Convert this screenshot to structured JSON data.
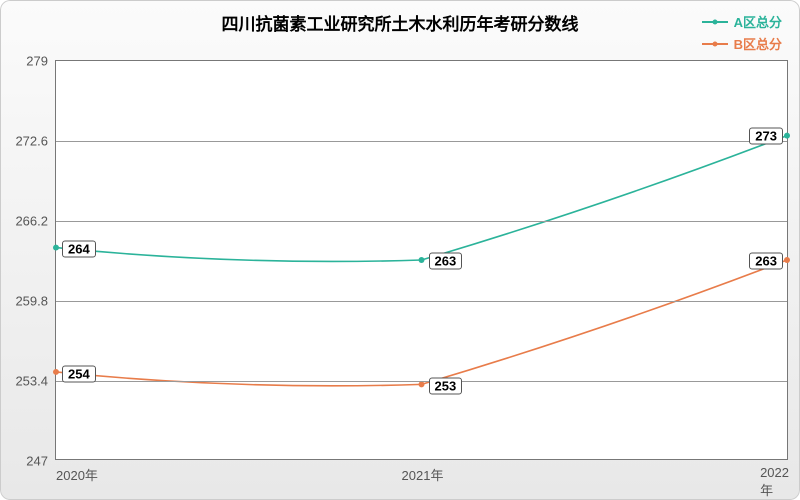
{
  "chart": {
    "type": "line",
    "title": "四川抗菌素工业研究所土木水利历年考研分数线",
    "title_fontsize": 17,
    "background_gradient": [
      "#fbfbfb",
      "#e8e8e8"
    ],
    "plot_background": "#ffffff",
    "grid_color": "#999999",
    "axis_color": "#777777",
    "label_fontsize": 13,
    "tick_fontsize": 13,
    "data_label_fontsize": 13,
    "xlim": [
      2020,
      2022
    ],
    "ylim": [
      247,
      279
    ],
    "yticks": [
      247,
      253.4,
      259.8,
      266.2,
      272.6,
      279
    ],
    "xticks": [
      "2020年",
      "2021年",
      "2022年"
    ],
    "legend_position": "top-right",
    "series": [
      {
        "name": "A区总分",
        "color": "#2bb39a",
        "line_width": 1.6,
        "marker": "circle",
        "marker_size": 3,
        "x": [
          2020,
          2021,
          2022
        ],
        "y": [
          264,
          263,
          273
        ],
        "labels": [
          "264",
          "263",
          "273"
        ]
      },
      {
        "name": "B区总分",
        "color": "#e87c4a",
        "line_width": 1.6,
        "marker": "circle",
        "marker_size": 3,
        "x": [
          2020,
          2021,
          2022
        ],
        "y": [
          254,
          253,
          263
        ],
        "labels": [
          "254",
          "253",
          "263"
        ]
      }
    ]
  }
}
